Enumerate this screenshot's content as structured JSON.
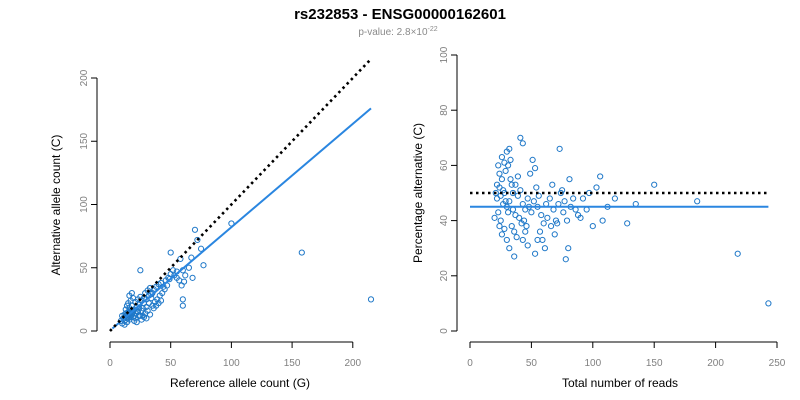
{
  "header": {
    "title": "rs232853 - ENSG00000162601",
    "pvalue_prefix": "p-value: 2.8×10",
    "pvalue_exponent": "-22"
  },
  "colors": {
    "points": "#1f78c8",
    "fit_line": "#2a86e0",
    "reference_line": "#000000",
    "axis_ticks": "#808080"
  },
  "chart_data": [
    {
      "type": "scatter",
      "title": "",
      "xlabel": "Reference allele count (G)",
      "ylabel": "Alternative allele count (C)",
      "xlim": [
        0,
        215
      ],
      "ylim": [
        0,
        200
      ],
      "xticks": [
        0,
        50,
        100,
        150,
        200
      ],
      "yticks": [
        0,
        50,
        100,
        150,
        200
      ],
      "grid": false,
      "reference_line": {
        "style": "dotted",
        "from": [
          0,
          0
        ],
        "to": [
          215,
          215
        ]
      },
      "fit_line": {
        "style": "solid",
        "from": [
          2,
          2
        ],
        "to": [
          215,
          176
        ]
      },
      "points": [
        [
          15,
          12
        ],
        [
          16,
          14
        ],
        [
          14,
          10
        ],
        [
          17,
          15
        ],
        [
          15,
          13
        ],
        [
          18,
          14
        ],
        [
          16,
          12
        ],
        [
          14,
          13
        ],
        [
          17,
          11
        ],
        [
          15,
          15
        ],
        [
          13,
          12
        ],
        [
          16,
          16
        ],
        [
          18,
          13
        ],
        [
          14,
          11
        ],
        [
          17,
          14
        ],
        [
          15,
          10
        ],
        [
          19,
          15
        ],
        [
          13,
          14
        ],
        [
          16,
          9
        ],
        [
          18,
          16
        ],
        [
          20,
          12
        ],
        [
          12,
          13
        ],
        [
          21,
          14
        ],
        [
          19,
          11
        ],
        [
          22,
          16
        ],
        [
          16,
          18
        ],
        [
          18,
          20
        ],
        [
          20,
          17
        ],
        [
          22,
          19
        ],
        [
          24,
          18
        ],
        [
          11,
          10
        ],
        [
          10,
          12
        ],
        [
          12,
          8
        ],
        [
          25,
          12
        ],
        [
          23,
          15
        ],
        [
          21,
          10
        ],
        [
          26,
          16
        ],
        [
          24,
          21
        ],
        [
          27,
          18
        ],
        [
          28,
          22
        ],
        [
          14,
          20
        ],
        [
          13,
          17
        ],
        [
          15,
          22
        ],
        [
          17,
          24
        ],
        [
          19,
          26
        ],
        [
          21,
          23
        ],
        [
          23,
          25
        ],
        [
          25,
          27
        ],
        [
          16,
          28
        ],
        [
          18,
          30
        ],
        [
          30,
          25
        ],
        [
          32,
          28
        ],
        [
          34,
          26
        ],
        [
          29,
          30
        ],
        [
          31,
          32
        ],
        [
          33,
          34
        ],
        [
          35,
          30
        ],
        [
          36,
          33
        ],
        [
          38,
          35
        ],
        [
          40,
          37
        ],
        [
          27,
          12
        ],
        [
          29,
          14
        ],
        [
          31,
          16
        ],
        [
          33,
          13
        ],
        [
          35,
          20
        ],
        [
          37,
          23
        ],
        [
          39,
          25
        ],
        [
          41,
          28
        ],
        [
          43,
          30
        ],
        [
          45,
          33
        ],
        [
          26,
          9
        ],
        [
          28,
          11
        ],
        [
          30,
          10
        ],
        [
          24,
          12
        ],
        [
          20,
          8
        ],
        [
          22,
          7
        ],
        [
          10,
          6
        ],
        [
          12,
          5
        ],
        [
          14,
          7
        ],
        [
          9,
          8
        ],
        [
          42,
          38
        ],
        [
          44,
          35
        ],
        [
          46,
          40
        ],
        [
          48,
          42
        ],
        [
          50,
          45
        ],
        [
          47,
          36
        ],
        [
          52,
          48
        ],
        [
          49,
          41
        ],
        [
          53,
          44
        ],
        [
          55,
          47
        ],
        [
          25,
          48
        ],
        [
          50,
          62
        ],
        [
          58,
          57
        ],
        [
          60,
          48
        ],
        [
          55,
          42
        ],
        [
          62,
          44
        ],
        [
          65,
          50
        ],
        [
          57,
          40
        ],
        [
          59,
          36
        ],
        [
          61,
          39
        ],
        [
          70,
          80
        ],
        [
          72,
          72
        ],
        [
          75,
          65
        ],
        [
          67,
          58
        ],
        [
          68,
          42
        ],
        [
          77,
          52
        ],
        [
          60,
          25
        ],
        [
          60,
          20
        ],
        [
          100,
          85
        ],
        [
          158,
          62
        ],
        [
          215,
          25
        ],
        [
          38,
          20
        ],
        [
          40,
          22
        ],
        [
          42,
          24
        ],
        [
          36,
          18
        ],
        [
          34,
          29
        ],
        [
          32,
          22
        ],
        [
          30,
          19
        ],
        [
          28,
          26
        ],
        [
          26,
          24
        ]
      ]
    },
    {
      "type": "scatter",
      "title": "",
      "xlabel": "Total number of reads",
      "ylabel": "Percentage alternative (C)",
      "xlim": [
        0,
        250
      ],
      "ylim": [
        0,
        100
      ],
      "xticks": [
        0,
        50,
        100,
        150,
        200,
        250
      ],
      "yticks": [
        0,
        20,
        40,
        60,
        80,
        100
      ],
      "grid": false,
      "reference_line": {
        "style": "dotted",
        "from": [
          0,
          50
        ],
        "to": [
          243,
          50
        ]
      },
      "fit_line": {
        "style": "solid",
        "from": [
          0,
          45
        ],
        "to": [
          243,
          45
        ]
      },
      "points": [
        [
          22,
          48
        ],
        [
          24,
          52
        ],
        [
          26,
          55
        ],
        [
          28,
          50
        ],
        [
          30,
          45
        ],
        [
          32,
          47
        ],
        [
          34,
          53
        ],
        [
          23,
          43
        ],
        [
          25,
          40
        ],
        [
          27,
          46
        ],
        [
          29,
          58
        ],
        [
          31,
          60
        ],
        [
          33,
          62
        ],
        [
          35,
          44
        ],
        [
          37,
          42
        ],
        [
          39,
          49
        ],
        [
          41,
          51
        ],
        [
          43,
          46
        ],
        [
          45,
          44
        ],
        [
          47,
          48
        ],
        [
          24,
          57
        ],
        [
          26,
          63
        ],
        [
          28,
          61
        ],
        [
          30,
          65
        ],
        [
          32,
          66
        ],
        [
          34,
          38
        ],
        [
          36,
          36
        ],
        [
          38,
          34
        ],
        [
          40,
          41
        ],
        [
          42,
          39
        ],
        [
          25,
          49
        ],
        [
          27,
          51
        ],
        [
          29,
          47
        ],
        [
          31,
          43
        ],
        [
          33,
          55
        ],
        [
          35,
          50
        ],
        [
          37,
          53
        ],
        [
          39,
          56
        ],
        [
          41,
          70
        ],
        [
          43,
          68
        ],
        [
          22,
          53
        ],
        [
          23,
          60
        ],
        [
          21,
          50
        ],
        [
          20,
          41
        ],
        [
          24,
          38
        ],
        [
          26,
          35
        ],
        [
          28,
          37
        ],
        [
          30,
          33
        ],
        [
          32,
          30
        ],
        [
          36,
          27
        ],
        [
          44,
          40
        ],
        [
          46,
          38
        ],
        [
          48,
          45
        ],
        [
          50,
          43
        ],
        [
          52,
          47
        ],
        [
          54,
          52
        ],
        [
          56,
          49
        ],
        [
          58,
          42
        ],
        [
          60,
          39
        ],
        [
          62,
          46
        ],
        [
          49,
          57
        ],
        [
          51,
          62
        ],
        [
          53,
          59
        ],
        [
          55,
          45
        ],
        [
          57,
          36
        ],
        [
          59,
          33
        ],
        [
          61,
          30
        ],
        [
          63,
          41
        ],
        [
          65,
          48
        ],
        [
          67,
          53
        ],
        [
          68,
          44
        ],
        [
          70,
          40
        ],
        [
          72,
          46
        ],
        [
          74,
          50
        ],
        [
          76,
          43
        ],
        [
          78,
          26
        ],
        [
          80,
          30
        ],
        [
          82,
          45
        ],
        [
          84,
          48
        ],
        [
          86,
          44
        ],
        [
          66,
          38
        ],
        [
          69,
          35
        ],
        [
          71,
          39
        ],
        [
          73,
          66
        ],
        [
          75,
          51
        ],
        [
          77,
          47
        ],
        [
          79,
          40
        ],
        [
          81,
          55
        ],
        [
          88,
          42
        ],
        [
          90,
          41
        ],
        [
          92,
          48
        ],
        [
          95,
          44
        ],
        [
          97,
          50
        ],
        [
          100,
          38
        ],
        [
          103,
          52
        ],
        [
          106,
          56
        ],
        [
          108,
          40
        ],
        [
          112,
          45
        ],
        [
          118,
          48
        ],
        [
          128,
          39
        ],
        [
          135,
          46
        ],
        [
          150,
          53
        ],
        [
          185,
          47
        ],
        [
          218,
          28
        ],
        [
          243,
          10
        ],
        [
          53,
          28
        ],
        [
          55,
          33
        ],
        [
          43,
          33
        ],
        [
          45,
          36
        ],
        [
          47,
          31
        ]
      ]
    }
  ]
}
